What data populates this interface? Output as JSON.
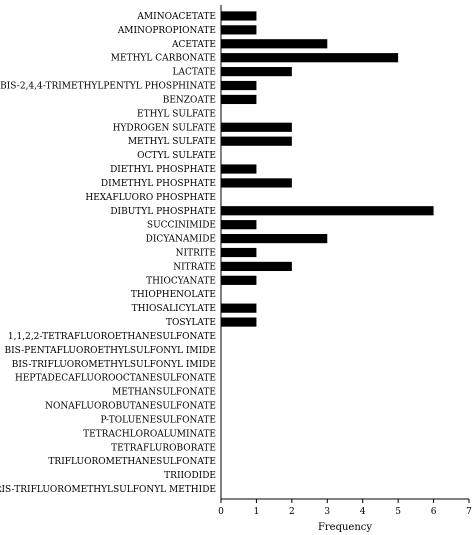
{
  "chart_data": {
    "type": "bar",
    "orientation": "horizontal",
    "categories": [
      "AMINOACETATE",
      "AMINOPROPIONATE",
      "ACETATE",
      "METHYL CARBONATE",
      "LACTATE",
      "BIS-2,4,4-TRIMETHYLPENTYL PHOSPHINATE",
      "BENZOATE",
      "ETHYL SULFATE",
      "HYDROGEN SULFATE",
      "METHYL SULFATE",
      "OCTYL SULFATE",
      "DIETHYL PHOSPHATE",
      "DIMETHYL PHOSPHATE",
      "HEXAFLUORO PHOSPHATE",
      "DIBUTYL PHOSPHATE",
      "SUCCINIMIDE",
      "DICYANAMIDE",
      "NITRITE",
      "NITRATE",
      "THIOCYANATE",
      "THIOPHENOLATE",
      "THIOSALICYLATE",
      "TOSYLATE",
      "1,1,2,2-TETRAFLUOROETHANESULFONATE",
      "BIS-PENTAFLUOROETHYLSULFONYL IMIDE",
      "BIS-TRIFLUOROMETHYLSULFONYL IMIDE",
      "HEPTADECAFLUOROOCTANESULFONATE",
      "METHANSULFONATE",
      "NONAFLUOROBUTANESULFONATE",
      "P-TOLUENESULFONATE",
      "TETRACHLOROALUMINATE",
      "TETRAFLUROBORATE",
      "TRIFLUOROMETHANESULFONATE",
      "TRIIODIDE",
      "TRIS-TRIFLUOROMETHYLSULFONYL METHIDE"
    ],
    "values": [
      1,
      1,
      3,
      5,
      2,
      1,
      1,
      0,
      2,
      2,
      0,
      1,
      2,
      0,
      6,
      1,
      3,
      1,
      2,
      1,
      0,
      1,
      1,
      0,
      0,
      0,
      0,
      0,
      0,
      0,
      0,
      0,
      0,
      0,
      0
    ],
    "xlim": [
      0,
      7
    ],
    "xticks": [
      "0",
      "1",
      "2",
      "3",
      "4",
      "5",
      "6",
      "7"
    ],
    "xlabel": "Frequency",
    "title": "",
    "grid": false,
    "colors": {
      "bar": "#000000",
      "axis": "#000000",
      "background": "#ffffff"
    }
  }
}
